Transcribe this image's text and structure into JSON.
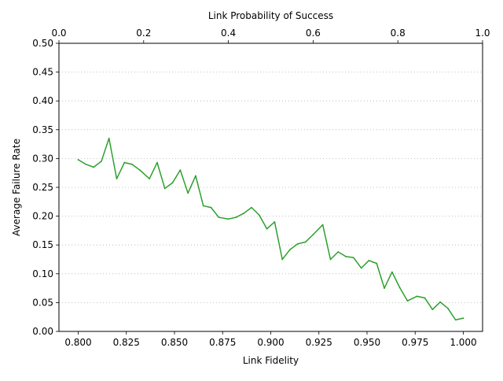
{
  "chart_data": {
    "type": "line",
    "title": "",
    "xlabel": "Link Fidelity",
    "ylabel": "Average Failure Rate",
    "top_xlabel": "Link Probability of Success",
    "xlim": [
      0.79,
      1.01
    ],
    "ylim": [
      0.0,
      0.5
    ],
    "top_xlim": [
      0.0,
      1.0
    ],
    "x_ticks": [
      0.8,
      0.825,
      0.85,
      0.875,
      0.9,
      0.925,
      0.95,
      0.975,
      1.0
    ],
    "x_tick_labels": [
      "0.800",
      "0.825",
      "0.850",
      "0.875",
      "0.900",
      "0.925",
      "0.950",
      "0.975",
      "1.000"
    ],
    "y_ticks": [
      0.0,
      0.05,
      0.1,
      0.15,
      0.2,
      0.25,
      0.3,
      0.35,
      0.4,
      0.45,
      0.5
    ],
    "y_tick_labels": [
      "0.00",
      "0.05",
      "0.10",
      "0.15",
      "0.20",
      "0.25",
      "0.30",
      "0.35",
      "0.40",
      "0.45",
      "0.50"
    ],
    "top_x_ticks": [
      0.0,
      0.2,
      0.4,
      0.6,
      0.8,
      1.0
    ],
    "top_x_tick_labels": [
      "0.0",
      "0.2",
      "0.4",
      "0.6",
      "0.8",
      "1.0"
    ],
    "grid": "horizontal-dotted",
    "series": [
      {
        "color": "#2ca02c",
        "x": [
          0.8,
          0.804,
          0.808,
          0.812,
          0.816,
          0.82,
          0.824,
          0.828,
          0.832,
          0.837,
          0.841,
          0.845,
          0.849,
          0.853,
          0.857,
          0.861,
          0.865,
          0.869,
          0.873,
          0.878,
          0.882,
          0.886,
          0.89,
          0.894,
          0.898,
          0.902,
          0.906,
          0.91,
          0.914,
          0.918,
          0.922,
          0.927,
          0.931,
          0.935,
          0.939,
          0.943,
          0.947,
          0.951,
          0.955,
          0.959,
          0.963,
          0.967,
          0.971,
          0.976,
          0.98,
          0.984,
          0.988,
          0.992,
          0.996,
          1.0
        ],
        "y": [
          0.298,
          0.29,
          0.285,
          0.295,
          0.335,
          0.265,
          0.293,
          0.29,
          0.28,
          0.265,
          0.293,
          0.248,
          0.258,
          0.28,
          0.24,
          0.27,
          0.218,
          0.215,
          0.198,
          0.195,
          0.198,
          0.205,
          0.215,
          0.202,
          0.178,
          0.19,
          0.125,
          0.142,
          0.152,
          0.155,
          0.168,
          0.185,
          0.125,
          0.138,
          0.13,
          0.128,
          0.11,
          0.123,
          0.118,
          0.075,
          0.103,
          0.076,
          0.053,
          0.061,
          0.058,
          0.038,
          0.051,
          0.04,
          0.02,
          0.023
        ]
      }
    ]
  }
}
